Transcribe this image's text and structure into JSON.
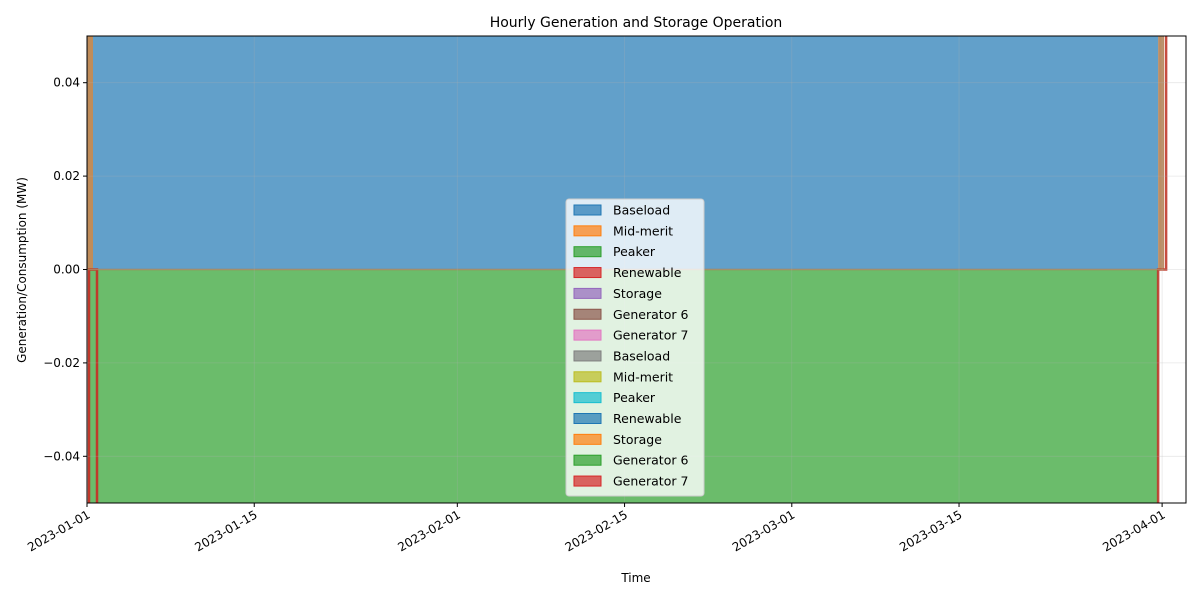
{
  "chart_data": {
    "type": "area",
    "title": "Hourly Generation and Storage Operation",
    "xlabel": "Time",
    "ylabel": "Generation/Consumption (MW)",
    "xlim": [
      "2023-01-01",
      "2023-04-03"
    ],
    "ylim": [
      -0.05,
      0.05
    ],
    "grid": true,
    "legend_position": "lower center",
    "x_ticks": [
      "2023-01-01",
      "2023-01-15",
      "2023-02-01",
      "2023-02-15",
      "2023-03-01",
      "2023-03-15",
      "2023-04-01"
    ],
    "y_ticks": [
      -0.04,
      -0.02,
      0.0,
      0.02,
      0.04
    ],
    "y_tick_labels": [
      "−0.04",
      "−0.02",
      "0.00",
      "0.02",
      "0.04"
    ],
    "series": [
      {
        "name": "Baseload",
        "color": "#1f77b4"
      },
      {
        "name": "Mid-merit",
        "color": "#ff7f0e"
      },
      {
        "name": "Peaker",
        "color": "#2ca02c"
      },
      {
        "name": "Renewable",
        "color": "#d62728"
      },
      {
        "name": "Storage",
        "color": "#9467bd"
      },
      {
        "name": "Generator 6",
        "color": "#8c564b"
      },
      {
        "name": "Generator 7",
        "color": "#e377c2"
      },
      {
        "name": "Baseload",
        "color": "#7f7f7f"
      },
      {
        "name": "Mid-merit",
        "color": "#bcbd22"
      },
      {
        "name": "Peaker",
        "color": "#17becf"
      },
      {
        "name": "Renewable",
        "color": "#1f77b4"
      },
      {
        "name": "Storage",
        "color": "#ff7f0e"
      },
      {
        "name": "Generator 6",
        "color": "#2ca02c"
      },
      {
        "name": "Generator 7",
        "color": "#d62728"
      }
    ],
    "regions": {
      "positive": {
        "from": "2023-01-01",
        "to": "2023-04-01",
        "y0": 0.0,
        "y1": 0.05,
        "color": "#1f77b4"
      },
      "negative": {
        "from": "2023-01-02",
        "to": "2023-04-01",
        "y0": -0.05,
        "y1": 0.0,
        "color": "#2ca02c"
      },
      "edge": {
        "from": "2023-01-01",
        "to": "2023-04-01",
        "color": "#d62728"
      }
    }
  }
}
